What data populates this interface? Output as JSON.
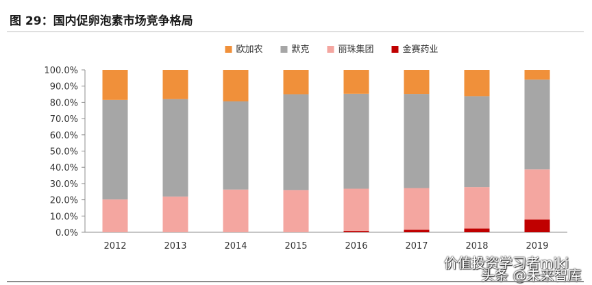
{
  "figure": {
    "title": "图 29：国内促卵泡素市场竞争格局"
  },
  "watermarks": {
    "line1": "价值投资学习者miki",
    "line2": "头条 @未来智库"
  },
  "chart_data": {
    "type": "bar",
    "stacked": true,
    "categories": [
      "2012",
      "2013",
      "2014",
      "2015",
      "2016",
      "2017",
      "2018",
      "2019"
    ],
    "series": [
      {
        "name": "金赛药业",
        "color": "#c00000",
        "values": [
          0.0,
          0.0,
          0.0,
          0.0,
          0.8,
          1.5,
          2.3,
          7.8
        ]
      },
      {
        "name": "丽珠集团",
        "color": "#f4a6a0",
        "values": [
          20.2,
          22.0,
          26.3,
          26.0,
          26.0,
          25.7,
          25.5,
          30.9
        ]
      },
      {
        "name": "默克",
        "color": "#a6a6a6",
        "values": [
          61.3,
          60.0,
          54.3,
          59.0,
          58.5,
          58.0,
          56.0,
          55.3
        ]
      },
      {
        "name": "欧加农",
        "color": "#f0903a",
        "values": [
          18.5,
          18.0,
          19.4,
          15.0,
          14.7,
          14.8,
          16.2,
          6.0
        ]
      }
    ],
    "legend_order": [
      "欧加农",
      "默克",
      "丽珠集团",
      "金赛药业"
    ],
    "legend_position": "top",
    "ylim": [
      0,
      100
    ],
    "yticks": [
      "0.0%",
      "10.0%",
      "20.0%",
      "30.0%",
      "40.0%",
      "50.0%",
      "60.0%",
      "70.0%",
      "80.0%",
      "90.0%",
      "100.0%"
    ],
    "ytick_values": [
      0,
      10,
      20,
      30,
      40,
      50,
      60,
      70,
      80,
      90,
      100
    ],
    "grid": false
  }
}
